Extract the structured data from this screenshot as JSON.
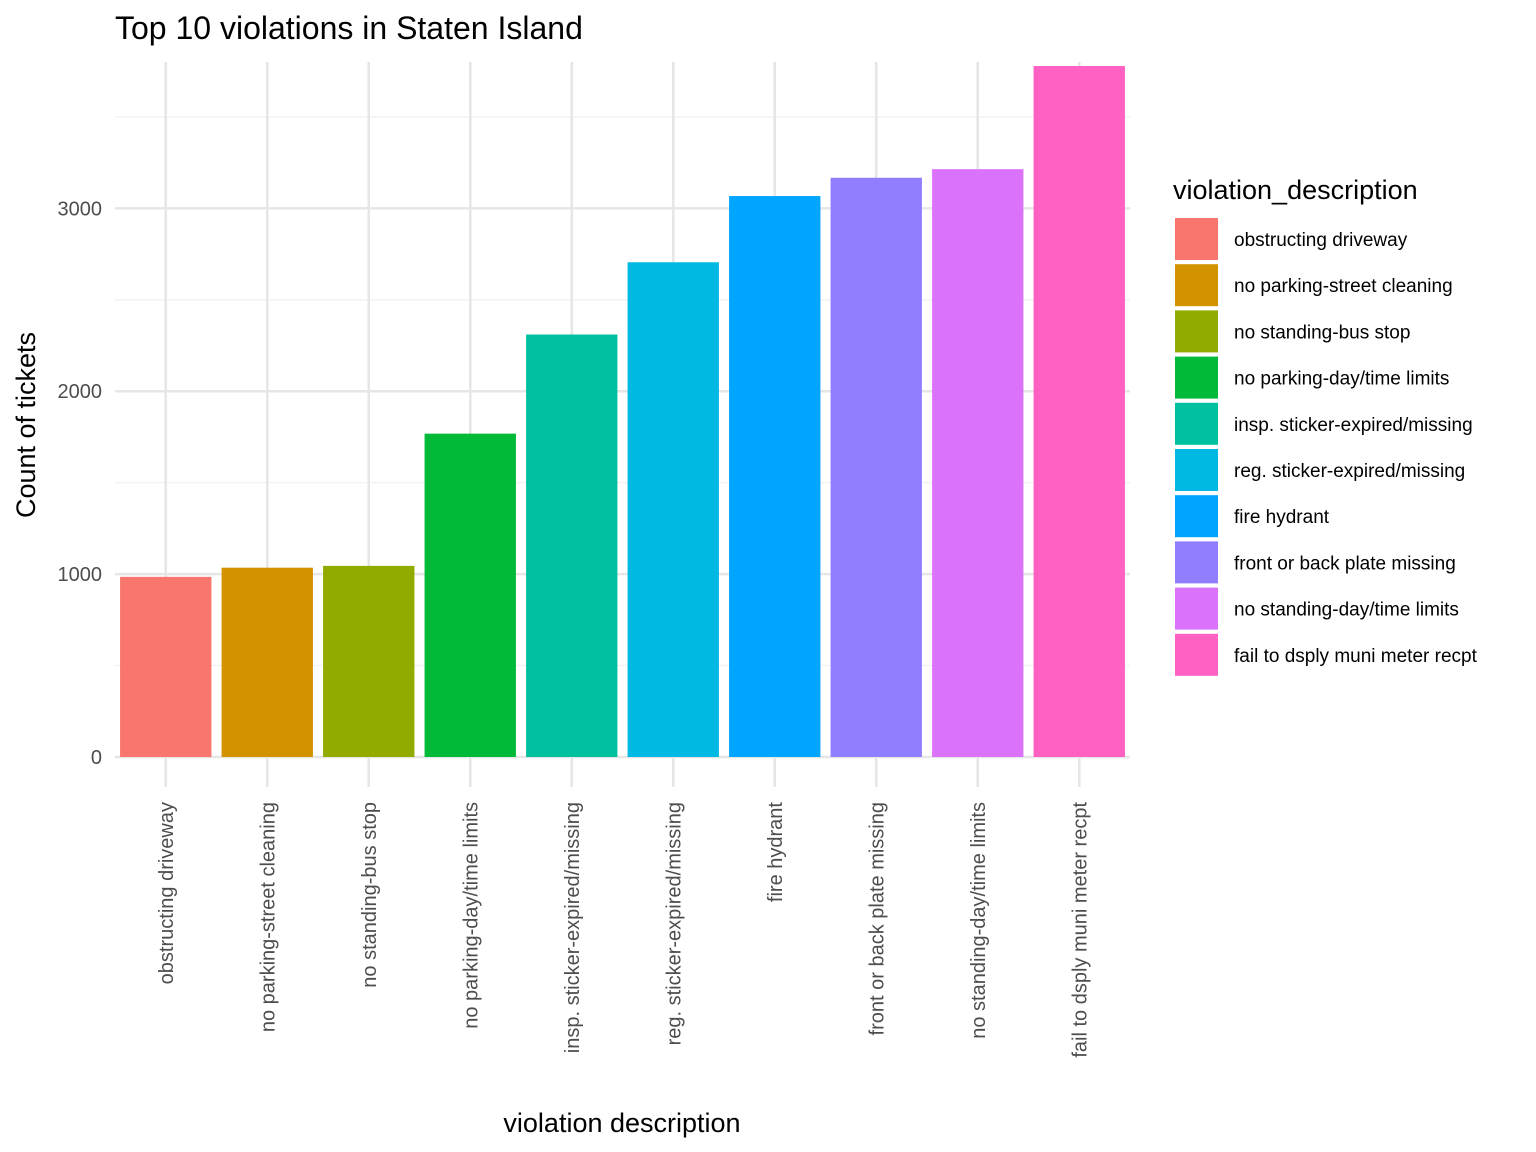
{
  "chart_data": {
    "type": "bar",
    "title": "Top 10 violations in Staten Island",
    "xlabel": "violation description",
    "ylabel": "Count of tickets",
    "ylim": [
      0,
      3800
    ],
    "yticks": [
      0,
      1000,
      2000,
      3000
    ],
    "grid": true,
    "legend_title": "violation_description",
    "legend_position": "right",
    "categories": [
      "obstructing driveway",
      "no parking-street cleaning",
      "no standing-bus stop",
      "no parking-day/time limits",
      "insp. sticker-expired/missing",
      "reg. sticker-expired/missing",
      "fire hydrant",
      "front or back plate missing",
      "no standing-day/time limits",
      "fail to dsply muni meter recpt"
    ],
    "values": [
      985,
      1035,
      1045,
      1768,
      2310,
      2705,
      3067,
      3167,
      3214,
      3778
    ],
    "colors": [
      "#F8766D",
      "#D39200",
      "#93AA00",
      "#00BA38",
      "#00C19F",
      "#00B9E3",
      "#00A5FF",
      "#8F7FFF",
      "#DB72FB",
      "#FF61C3"
    ]
  }
}
